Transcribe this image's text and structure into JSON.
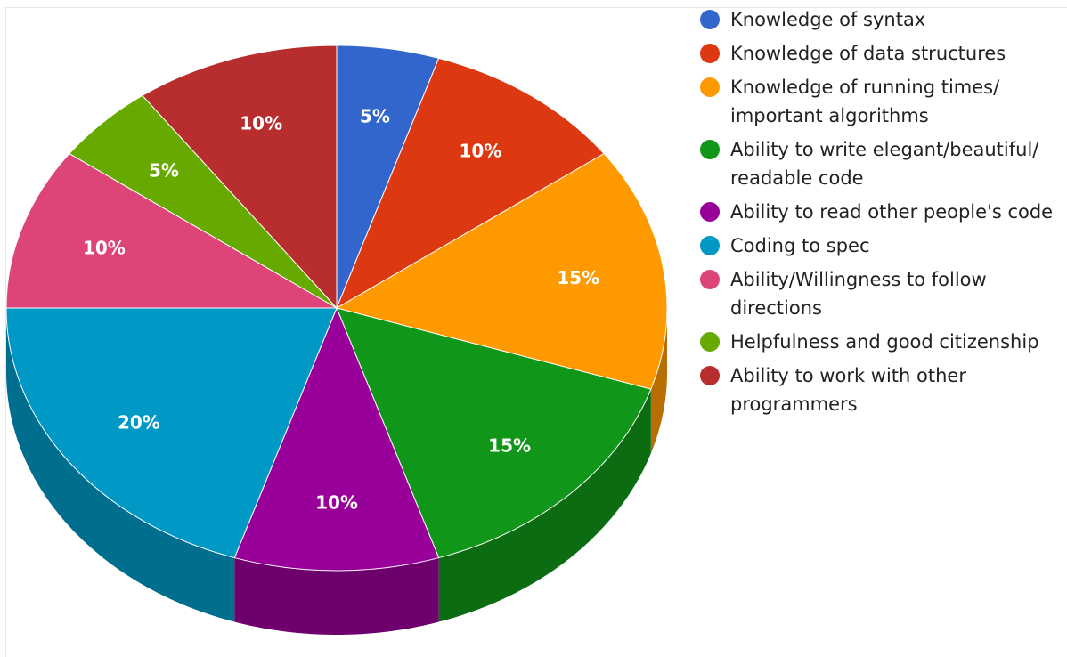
{
  "chart_data": {
    "type": "pie",
    "title": "",
    "legend_position": "right",
    "start_angle_deg": 0,
    "slices": [
      {
        "label": "Knowledge of syntax",
        "value": 5,
        "display": "5%",
        "color": "#3366cc",
        "side_color": "#244a94"
      },
      {
        "label": "Knowledge of data structures",
        "value": 10,
        "display": "10%",
        "color": "#dc3912",
        "side_color": "#9e290d"
      },
      {
        "label": "Knowledge of running times/ important algorithms",
        "value": 15,
        "display": "15%",
        "color": "#ff9900",
        "side_color": "#b86e00"
      },
      {
        "label": "Ability to write elegant/beautiful/ readable code",
        "value": 15,
        "display": "15%",
        "color": "#109618",
        "side_color": "#0b6c11"
      },
      {
        "label": "Ability to read other people's code",
        "value": 10,
        "display": "10%",
        "color": "#990099",
        "side_color": "#6e006e"
      },
      {
        "label": "Coding to spec",
        "value": 20,
        "display": "20%",
        "color": "#0099c6",
        "side_color": "#006e8f"
      },
      {
        "label": "Ability/Willingness to follow directions",
        "value": 10,
        "display": "10%",
        "color": "#dd4477",
        "side_color": "#9f3156"
      },
      {
        "label": "Helpfulness and good citizenship",
        "value": 5,
        "display": "5%",
        "color": "#66aa00",
        "side_color": "#4a7a00"
      },
      {
        "label": "Ability to work with other programmers",
        "value": 10,
        "display": "10%",
        "color": "#b82e2e",
        "side_color": "#852121"
      }
    ]
  }
}
